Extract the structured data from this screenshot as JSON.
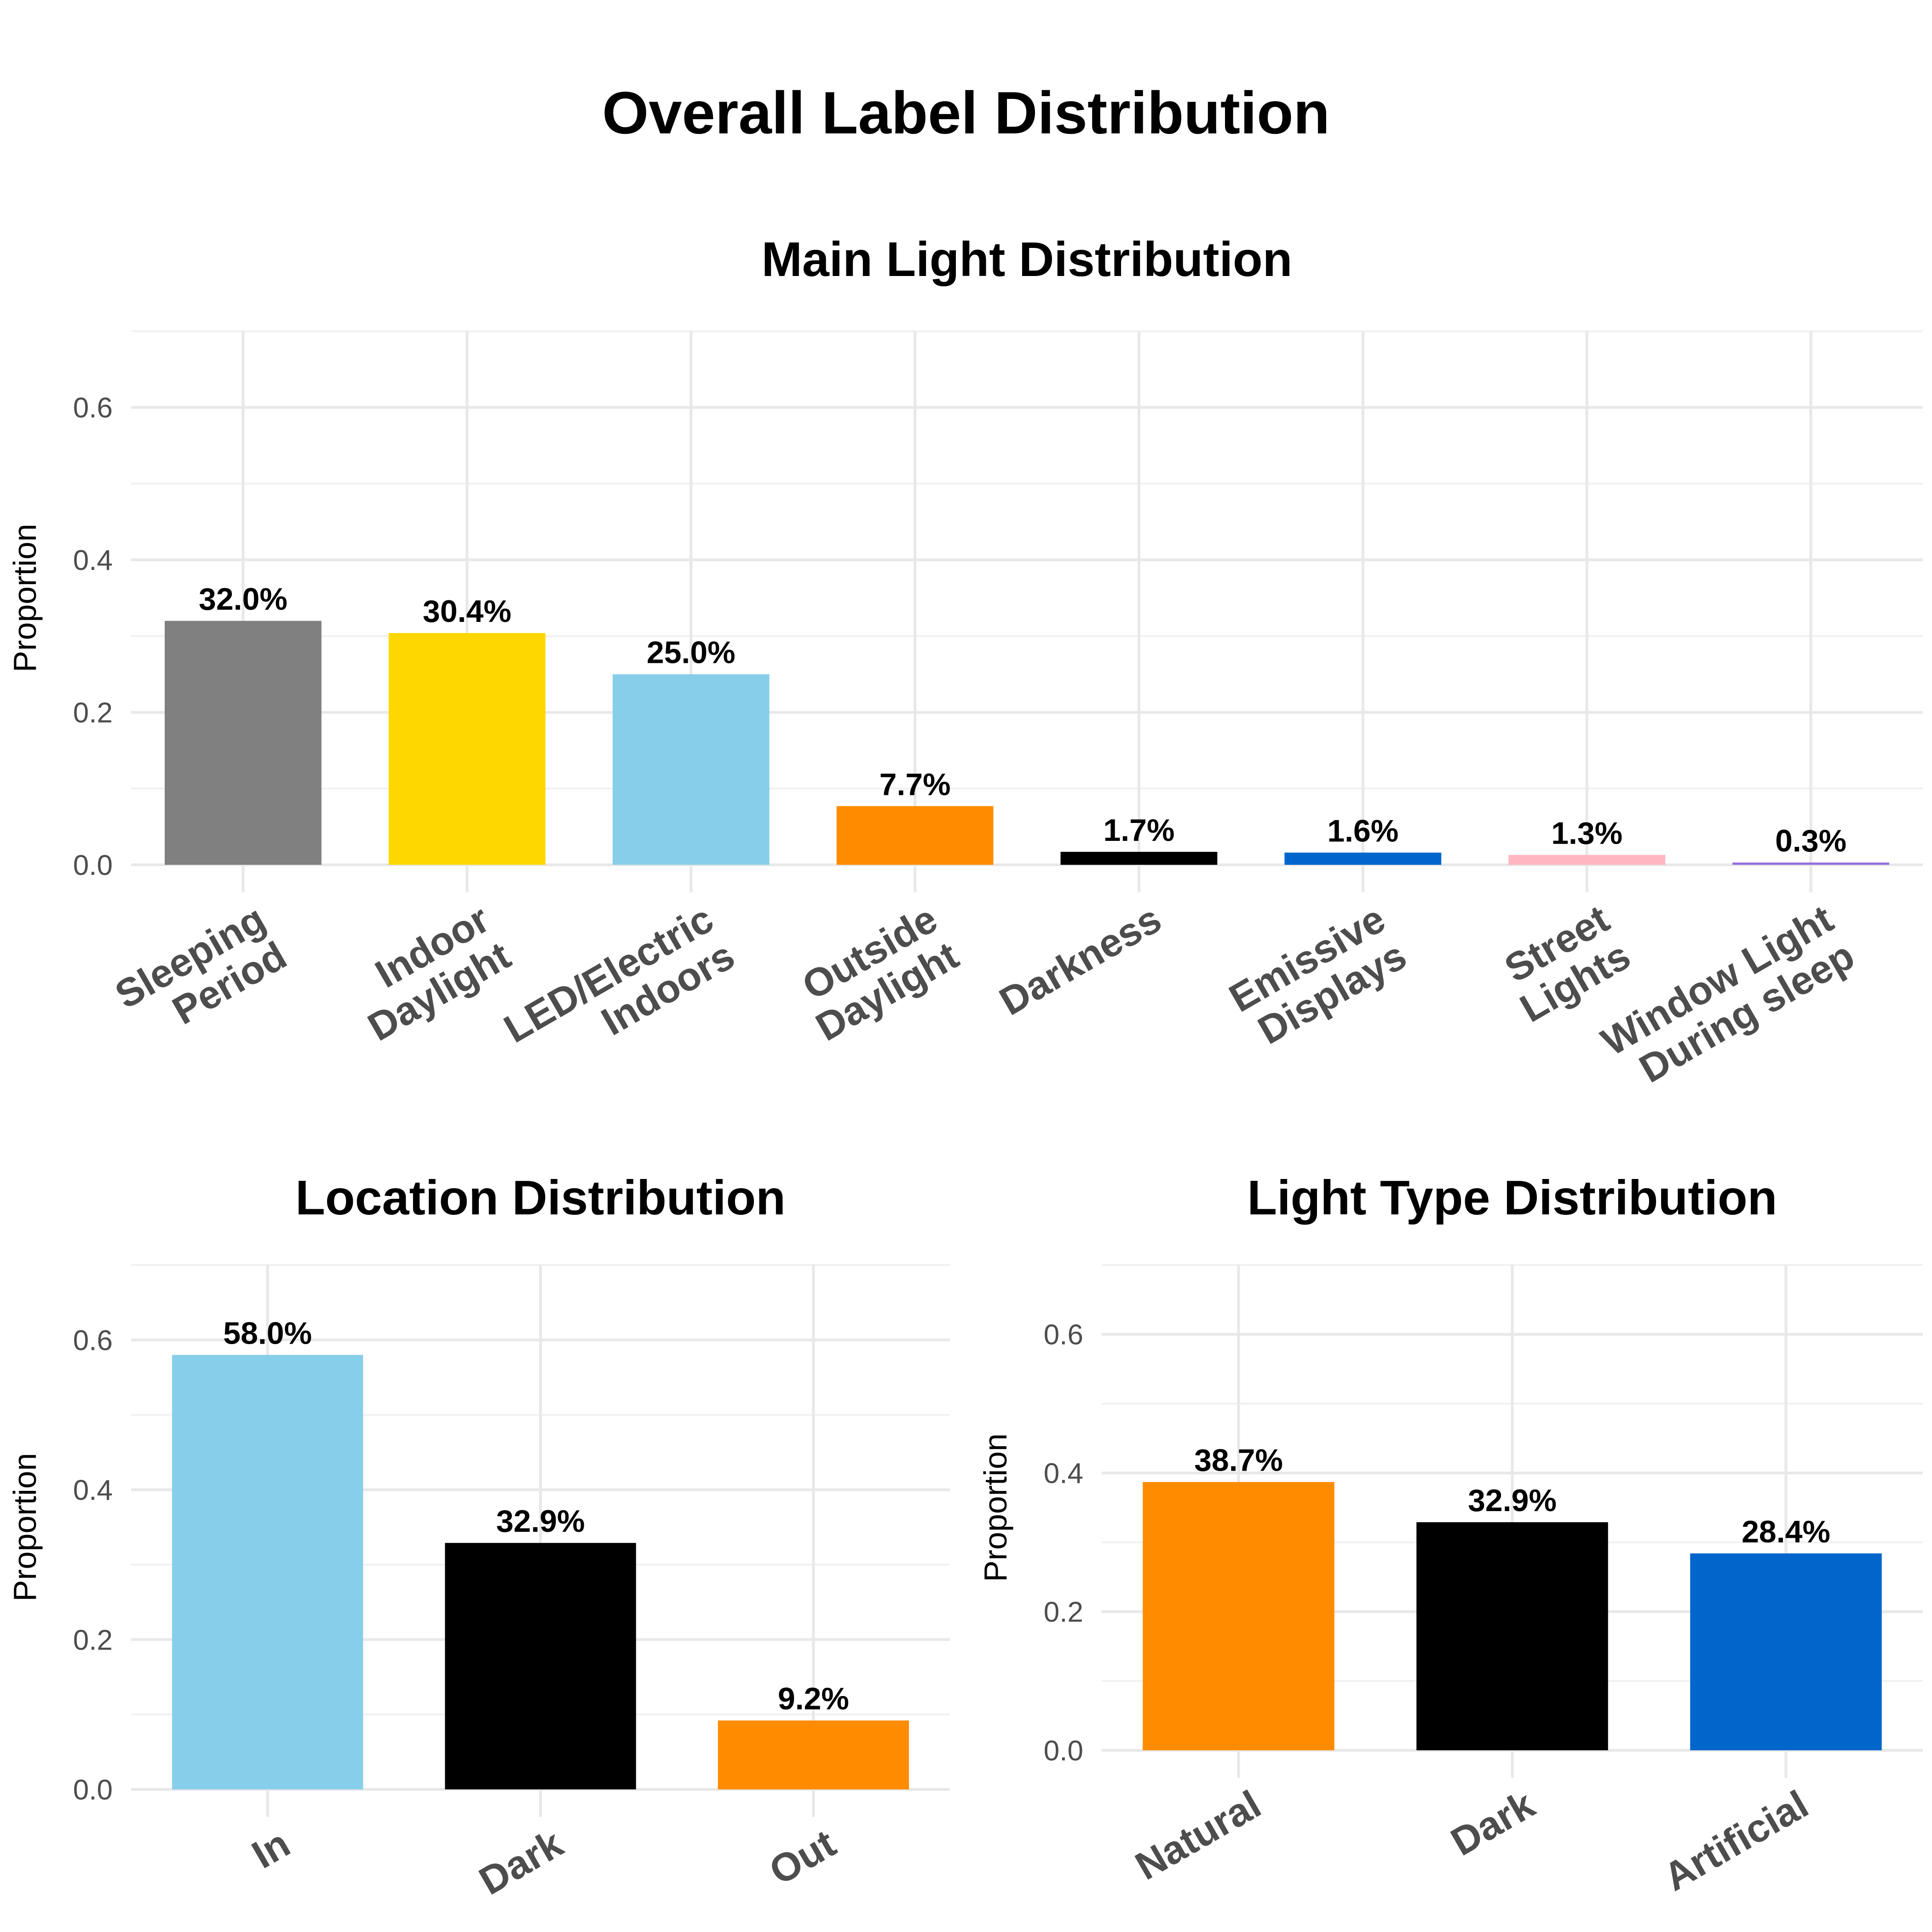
{
  "title": "Overall Label Distribution",
  "chart_data": [
    {
      "type": "bar",
      "title": "Main Light Distribution",
      "xlabel": "",
      "ylabel": "Proportion",
      "ylim": [
        0,
        0.7
      ],
      "yticks": [
        "0.0",
        "0.2",
        "0.4",
        "0.6"
      ],
      "grid": true,
      "categories": [
        "Sleeping\nPeriod",
        "Indoor\nDaylight",
        "LED/Electric\nIndoors",
        "Outside\nDaylight",
        "Darkness",
        "Emissive\nDisplays",
        "Street\nLights",
        "Window Light\nDuring sleep"
      ],
      "values": [
        0.32,
        0.304,
        0.25,
        0.077,
        0.017,
        0.016,
        0.013,
        0.003
      ],
      "labels": [
        "32.0%",
        "30.4%",
        "25.0%",
        "7.7%",
        "1.7%",
        "1.6%",
        "1.3%",
        "0.3%"
      ],
      "colors": [
        "#808080",
        "#FFD700",
        "#87CEEB",
        "#FF8C00",
        "#000000",
        "#0066CC",
        "#FFB6C1",
        "#9370DB"
      ]
    },
    {
      "type": "bar",
      "title": "Location Distribution",
      "xlabel": "",
      "ylabel": "Proportion",
      "ylim": [
        0,
        0.7
      ],
      "yticks": [
        "0.0",
        "0.2",
        "0.4",
        "0.6"
      ],
      "grid": true,
      "categories": [
        "In",
        "Dark",
        "Out"
      ],
      "values": [
        0.58,
        0.329,
        0.092
      ],
      "labels": [
        "58.0%",
        "32.9%",
        "9.2%"
      ],
      "colors": [
        "#87CEEB",
        "#000000",
        "#FF8C00"
      ]
    },
    {
      "type": "bar",
      "title": "Light Type Distribution",
      "xlabel": "",
      "ylabel": "Proportion",
      "ylim": [
        0,
        0.7
      ],
      "yticks": [
        "0.0",
        "0.2",
        "0.4",
        "0.6"
      ],
      "grid": true,
      "categories": [
        "Natural",
        "Dark",
        "Artificial"
      ],
      "values": [
        0.387,
        0.329,
        0.284
      ],
      "labels": [
        "38.7%",
        "32.9%",
        "28.4%"
      ],
      "colors": [
        "#FF8C00",
        "#000000",
        "#0066CC"
      ]
    }
  ]
}
